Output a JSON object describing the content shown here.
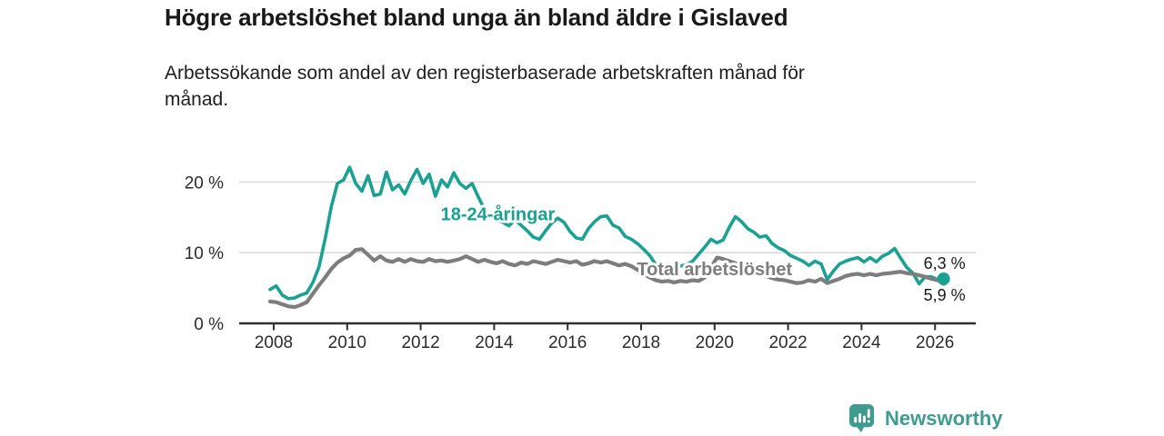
{
  "header": {
    "title": "Högre arbetslöshet bland unga än bland äldre i Gislaved",
    "subtitle": "Arbetssökande som andel av den registerbaserade arbetskraften månad för månad."
  },
  "chart_data": {
    "type": "line",
    "title": "Högre arbetslöshet bland unga än bland äldre i Gislaved",
    "subtitle": "Arbetssökande som andel av den registerbaserade arbetskraften månad för månad.",
    "x_start": 2007.9,
    "x_step_years": 0.1666667,
    "grid": true,
    "grid_color": "#dadada",
    "axis_color": "#2f2f2f",
    "x_axis": {
      "ticks": [
        {
          "value": 2008,
          "label": "2008"
        },
        {
          "value": 2010,
          "label": "2010"
        },
        {
          "value": 2012,
          "label": "2012"
        },
        {
          "value": 2014,
          "label": "2014"
        },
        {
          "value": 2016,
          "label": "2016"
        },
        {
          "value": 2018,
          "label": "2018"
        },
        {
          "value": 2020,
          "label": "2020"
        },
        {
          "value": 2022,
          "label": "2022"
        },
        {
          "value": 2024,
          "label": "2024"
        },
        {
          "value": 2026,
          "label": "2026"
        }
      ],
      "range": [
        2007.45,
        2026.55
      ]
    },
    "y_axis": {
      "ticks": [
        {
          "value": 0,
          "label": "0 %"
        },
        {
          "value": 10,
          "label": "10 %"
        },
        {
          "value": 20,
          "label": "20 %"
        }
      ],
      "range": [
        0,
        23.5
      ]
    },
    "series": [
      {
        "name": "18-24-åringar",
        "color": "#1aa192",
        "stroke_width": 3.6,
        "label_pos": {
          "x": 2014.1,
          "y": 15.5
        },
        "end_label": "6,3 %",
        "end_label_side": "above",
        "end_dot_radius": 7,
        "values": [
          4.8,
          5.3,
          4.0,
          3.5,
          3.6,
          4.0,
          4.3,
          5.8,
          8.0,
          12.0,
          16.5,
          19.8,
          20.3,
          22.1,
          19.8,
          18.7,
          20.9,
          18.1,
          18.3,
          21.4,
          18.9,
          19.6,
          18.3,
          20.2,
          21.8,
          19.8,
          21.1,
          18.0,
          20.3,
          19.3,
          21.3,
          19.8,
          19.1,
          19.8,
          17.9,
          16.2,
          15.0,
          14.6,
          14.3,
          13.8,
          14.6,
          13.9,
          13.1,
          12.2,
          11.9,
          13.1,
          14.2,
          14.9,
          14.3,
          13.0,
          12.1,
          11.9,
          13.4,
          14.4,
          15.1,
          15.2,
          13.9,
          13.5,
          12.3,
          11.9,
          11.3,
          10.5,
          9.6,
          8.3,
          7.8,
          7.6,
          7.8,
          8.1,
          8.3,
          8.8,
          9.8,
          10.8,
          11.9,
          11.4,
          11.8,
          13.6,
          15.1,
          14.4,
          13.4,
          12.9,
          12.2,
          12.4,
          11.3,
          10.7,
          10.3,
          9.6,
          9.2,
          8.8,
          8.2,
          8.8,
          8.4,
          6.2,
          7.4,
          8.4,
          8.8,
          9.1,
          9.3,
          8.7,
          9.3,
          8.7,
          9.5,
          9.9,
          10.6,
          9.2,
          7.9,
          7.1,
          5.6,
          6.6,
          6.6,
          6.2,
          6.3
        ]
      },
      {
        "name": "Total arbetslöshet",
        "color": "#7d7d7d",
        "stroke_width": 4.2,
        "label_pos": {
          "x": 2020.0,
          "y": 7.7
        },
        "end_label": "5,9 %",
        "end_label_side": "below",
        "end_dot_radius": 4.5,
        "values": [
          3.1,
          3.0,
          2.7,
          2.4,
          2.3,
          2.6,
          3.0,
          4.2,
          5.4,
          6.5,
          7.7,
          8.6,
          9.2,
          9.6,
          10.4,
          10.5,
          9.7,
          8.9,
          9.5,
          8.9,
          8.7,
          9.1,
          8.7,
          9.1,
          8.8,
          8.7,
          9.1,
          8.8,
          8.9,
          8.7,
          8.9,
          9.1,
          9.5,
          9.1,
          8.7,
          9.0,
          8.7,
          8.5,
          8.8,
          8.4,
          8.2,
          8.6,
          8.4,
          8.8,
          8.6,
          8.4,
          8.7,
          9.0,
          8.8,
          8.6,
          8.8,
          8.3,
          8.5,
          8.8,
          8.6,
          8.8,
          8.5,
          8.2,
          8.4,
          8.1,
          7.6,
          7.0,
          6.5,
          6.1,
          5.9,
          6.0,
          5.8,
          6.0,
          5.9,
          6.1,
          6.0,
          6.5,
          7.9,
          9.3,
          9.1,
          8.8,
          8.5,
          8.2,
          7.8,
          7.4,
          7.0,
          6.7,
          6.4,
          6.2,
          6.1,
          5.9,
          5.7,
          5.8,
          6.1,
          5.9,
          6.3,
          5.7,
          6.0,
          6.3,
          6.7,
          6.9,
          7.0,
          6.8,
          7.0,
          6.8,
          7.0,
          7.1,
          7.2,
          7.3,
          7.1,
          7.0,
          6.8,
          6.6,
          6.3,
          6.1,
          5.9
        ]
      }
    ]
  },
  "footer": {
    "brand": "Newsworthy"
  },
  "colors": {
    "accent_teal": "#1aa192",
    "line_gray": "#7d7d7d",
    "grid_gray": "#dadada",
    "axis_dark": "#2f2f2f",
    "text_dark": "#191919",
    "brand_teal": "#3f9b8f",
    "background": "#ffffff"
  }
}
